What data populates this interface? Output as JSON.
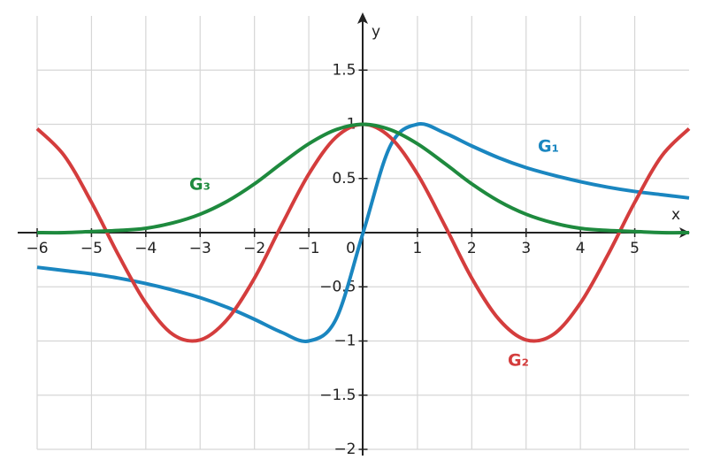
{
  "chart_data": {
    "type": "line",
    "x_label": "x",
    "y_label": "y",
    "x": [
      -6,
      -5.5,
      -5,
      -4.5,
      -4,
      -3.5,
      -3,
      -2.5,
      -2,
      -1.5,
      -1,
      -0.5,
      0,
      0.5,
      1,
      1.5,
      2,
      2.5,
      3,
      3.5,
      4,
      4.5,
      5,
      5.5,
      6
    ],
    "series": [
      {
        "name": "G₁",
        "color": "#1a86c0",
        "values": [
          -0.32,
          -0.35,
          -0.38,
          -0.42,
          -0.47,
          -0.53,
          -0.6,
          -0.69,
          -0.8,
          -0.92,
          -1,
          -0.8,
          0,
          0.8,
          1,
          0.92,
          0.8,
          0.69,
          0.6,
          0.53,
          0.47,
          0.42,
          0.38,
          0.35,
          0.32
        ]
      },
      {
        "name": "G₂",
        "color": "#d43d3d",
        "values": [
          0.96,
          0.71,
          0.28,
          -0.21,
          -0.65,
          -0.94,
          -0.99,
          -0.8,
          -0.42,
          0.07,
          0.54,
          0.88,
          1,
          0.88,
          0.54,
          0.07,
          -0.42,
          -0.8,
          -0.99,
          -0.94,
          -0.65,
          -0.21,
          0.28,
          0.71,
          0.96
        ]
      },
      {
        "name": "G₃",
        "color": "#1e8a3e",
        "values": [
          0,
          0,
          0.01,
          0.02,
          0.04,
          0.09,
          0.17,
          0.29,
          0.45,
          0.64,
          0.82,
          0.95,
          1,
          0.95,
          0.82,
          0.64,
          0.45,
          0.29,
          0.17,
          0.09,
          0.04,
          0.02,
          0.01,
          0,
          0
        ]
      }
    ],
    "xlim": [
      -6,
      6
    ],
    "ylim": [
      -2,
      2
    ],
    "xticks": [
      {
        "value": -6,
        "label": "−6"
      },
      {
        "value": -5,
        "label": "−5"
      },
      {
        "value": -4,
        "label": "−4"
      },
      {
        "value": -3,
        "label": "−3"
      },
      {
        "value": -2,
        "label": "−2"
      },
      {
        "value": -1,
        "label": "−1"
      },
      0,
      1,
      2,
      3,
      4,
      5
    ],
    "yticks": [
      {
        "value": -2,
        "label": "−2"
      },
      {
        "value": -1.5,
        "label": "−1.5"
      },
      {
        "value": -1,
        "label": "−1"
      },
      {
        "value": -0.5,
        "label": "−0.5"
      },
      0.5,
      1,
      1.5
    ],
    "grid": true
  }
}
